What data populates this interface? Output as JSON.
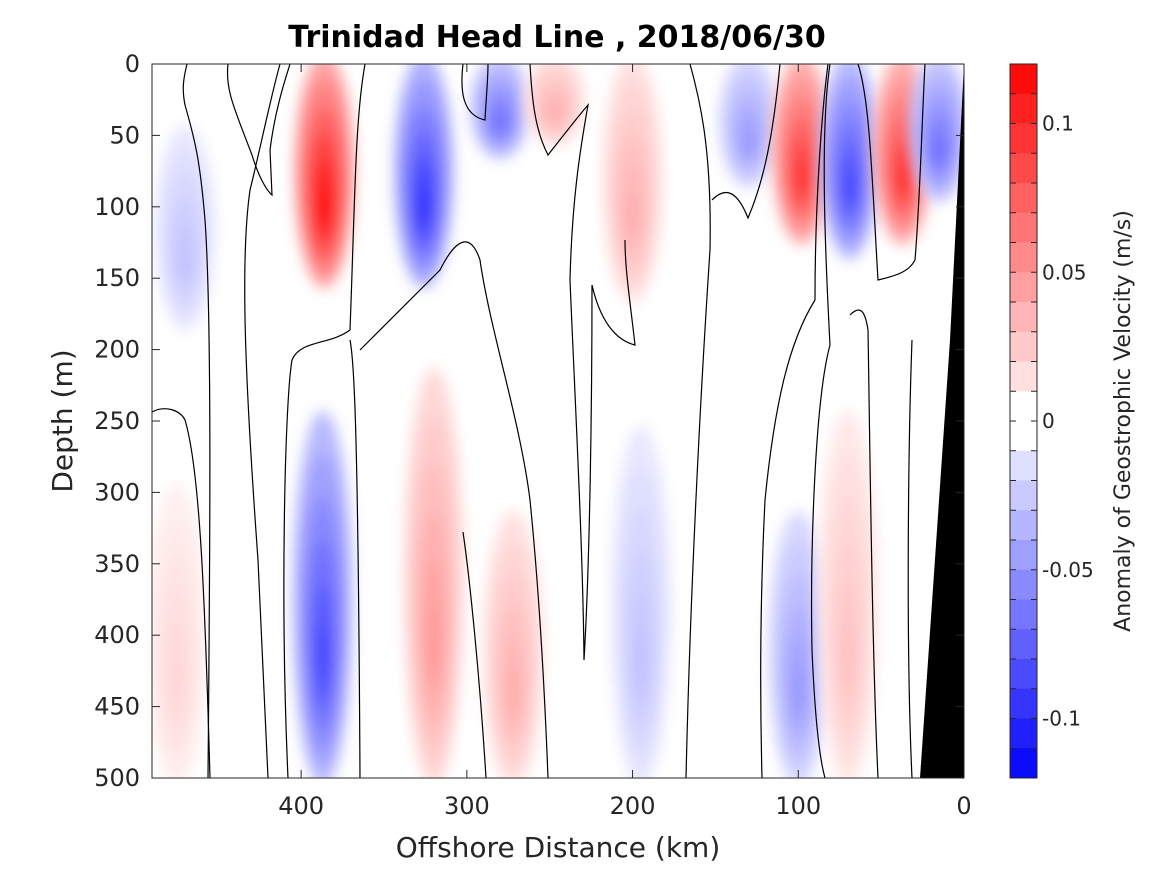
{
  "chart_data": {
    "type": "heatmap",
    "title": "Trinidad Head Line , 2018/06/30",
    "xlabel": "Offshore Distance (km)",
    "ylabel": "Depth (m)",
    "xlim": [
      490,
      0
    ],
    "ylim": [
      0,
      500
    ],
    "xticks": [
      "400",
      "300",
      "200",
      "100",
      "0"
    ],
    "yticks": [
      "0",
      "50",
      "100",
      "150",
      "200",
      "250",
      "300",
      "350",
      "400",
      "450",
      "500"
    ],
    "colorbar": {
      "label": "Anomaly of Geostrophic Velocity (m/s)",
      "range": [
        -0.12,
        0.12
      ],
      "levels": 24,
      "ticks": [
        "0.1",
        "0.05",
        "0",
        "-0.05",
        "-0.1"
      ],
      "colormap": "blue-white-red"
    },
    "bottom_mask_color": "#000000",
    "features": [
      {
        "kind": "core",
        "x": 386,
        "depth_top": 0,
        "depth_bottom": 150,
        "value": 0.12
      },
      {
        "kind": "core",
        "x": 326,
        "depth_top": 0,
        "depth_bottom": 150,
        "value": -0.1
      },
      {
        "kind": "core",
        "x": 280,
        "depth_top": 0,
        "depth_bottom": 60,
        "value": -0.07
      },
      {
        "kind": "core",
        "x": 247,
        "depth_top": 0,
        "depth_bottom": 50,
        "value": 0.04
      },
      {
        "kind": "core",
        "x": 200,
        "depth_top": 0,
        "depth_bottom": 160,
        "value": 0.04
      },
      {
        "kind": "core",
        "x": 130,
        "depth_top": 0,
        "depth_bottom": 80,
        "value": -0.05
      },
      {
        "kind": "core",
        "x": 98,
        "depth_top": 0,
        "depth_bottom": 120,
        "value": 0.1
      },
      {
        "kind": "core",
        "x": 69,
        "depth_top": 0,
        "depth_bottom": 130,
        "value": -0.09
      },
      {
        "kind": "core",
        "x": 37,
        "depth_top": 0,
        "depth_bottom": 120,
        "value": 0.1
      },
      {
        "kind": "core",
        "x": 15,
        "depth_top": 0,
        "depth_bottom": 90,
        "value": -0.07
      },
      {
        "kind": "core",
        "x": 470,
        "depth_top": 50,
        "depth_bottom": 180,
        "value": -0.03
      },
      {
        "kind": "core",
        "x": 387,
        "depth_top": 250,
        "depth_bottom": 500,
        "value": -0.09
      },
      {
        "kind": "core",
        "x": 320,
        "depth_top": 220,
        "depth_bottom": 500,
        "value": 0.05
      },
      {
        "kind": "core",
        "x": 272,
        "depth_top": 320,
        "depth_bottom": 500,
        "value": 0.04
      },
      {
        "kind": "core",
        "x": 195,
        "depth_top": 260,
        "depth_bottom": 500,
        "value": -0.03
      },
      {
        "kind": "core",
        "x": 100,
        "depth_top": 320,
        "depth_bottom": 500,
        "value": -0.05
      },
      {
        "kind": "core",
        "x": 70,
        "depth_top": 250,
        "depth_bottom": 500,
        "value": 0.03
      },
      {
        "kind": "core",
        "x": 475,
        "depth_top": 300,
        "depth_bottom": 500,
        "value": 0.02
      }
    ]
  }
}
